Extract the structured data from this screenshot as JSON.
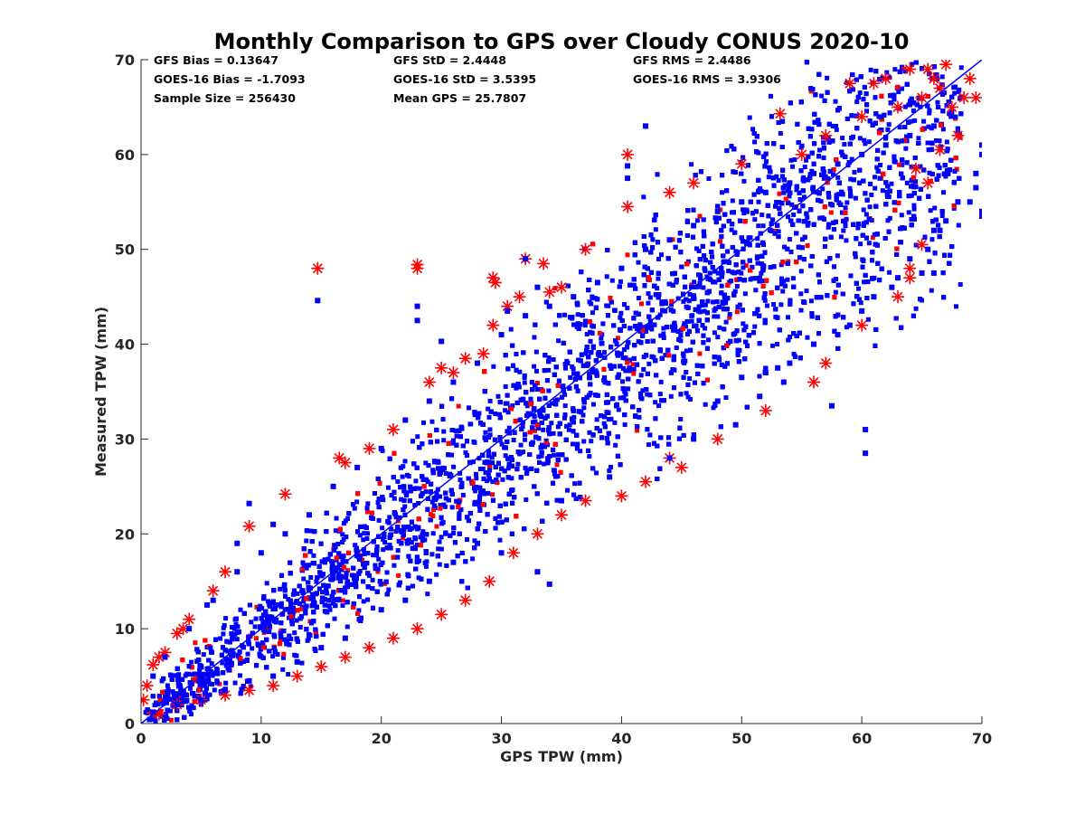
{
  "chart_data": {
    "type": "scatter",
    "title": "Monthly Comparison to GPS over Cloudy CONUS 2020-10",
    "xlabel": "GPS TPW (mm)",
    "ylabel": "Measured TPW (mm)",
    "xlim": [
      0,
      70
    ],
    "ylim": [
      0,
      70
    ],
    "xticks": [
      0,
      10,
      20,
      30,
      40,
      50,
      60,
      70
    ],
    "yticks": [
      0,
      10,
      20,
      30,
      40,
      50,
      60,
      70
    ],
    "grid": false,
    "colors": {
      "gfs": "#ff0000",
      "goes16": "#0000ff",
      "one_to_one": "#0000ff"
    },
    "stats": {
      "gfs_bias": "GFS Bias = 0.13647",
      "goes_bias": "GOES-16 Bias = -1.7093",
      "sample_size": "Sample Size = 256430",
      "gfs_std": "GFS StD = 2.4448",
      "goes_std": "GOES-16 StD = 3.5395",
      "mean_gps": "Mean GPS = 25.7807",
      "gfs_rms": "GFS RMS = 2.4486",
      "goes_rms": "GOES-16 RMS = 3.9306"
    },
    "series": [
      {
        "marker": "asterisk",
        "color": "#ff0000",
        "points": [
          [
            0.2,
            2.5
          ],
          [
            0.5,
            4
          ],
          [
            1,
            6.2
          ],
          [
            1.5,
            7
          ],
          [
            2,
            7.5
          ],
          [
            3,
            9.5
          ],
          [
            3.5,
            10
          ],
          [
            4,
            11
          ],
          [
            6,
            14
          ],
          [
            7,
            16
          ],
          [
            9,
            20.8
          ],
          [
            12,
            24.2
          ],
          [
            14.7,
            48
          ],
          [
            16.5,
            28
          ],
          [
            17,
            27.5
          ],
          [
            19,
            29
          ],
          [
            21,
            31
          ],
          [
            23,
            48
          ],
          [
            23,
            48.4
          ],
          [
            24,
            36
          ],
          [
            25,
            37.5
          ],
          [
            26,
            37
          ],
          [
            27,
            38.5
          ],
          [
            28.5,
            39
          ],
          [
            29.3,
            47
          ],
          [
            29.5,
            46.5
          ],
          [
            29.3,
            42
          ],
          [
            30.5,
            44
          ],
          [
            31.5,
            45
          ],
          [
            32,
            49
          ],
          [
            33.5,
            48.5
          ],
          [
            34,
            45.5
          ],
          [
            35,
            46
          ],
          [
            37,
            50
          ],
          [
            40.5,
            60
          ],
          [
            40.5,
            54.5
          ],
          [
            44,
            56
          ],
          [
            46,
            57
          ],
          [
            50,
            59
          ],
          [
            53.2,
            64.3
          ],
          [
            55,
            60
          ],
          [
            57,
            62
          ],
          [
            59,
            67.5
          ],
          [
            60,
            64
          ],
          [
            61,
            67.5
          ],
          [
            62,
            68
          ],
          [
            63,
            65
          ],
          [
            64,
            69
          ],
          [
            65,
            66
          ],
          [
            65.5,
            69
          ],
          [
            66,
            68
          ],
          [
            66.5,
            67
          ],
          [
            67,
            69.5
          ],
          [
            67.5,
            65
          ],
          [
            68,
            62
          ],
          [
            68.5,
            66
          ],
          [
            69,
            68
          ],
          [
            69.5,
            66
          ],
          [
            65.5,
            57
          ],
          [
            64.5,
            58.5
          ],
          [
            66.5,
            60.5
          ],
          [
            65,
            50.5
          ],
          [
            64,
            48
          ],
          [
            64,
            47
          ],
          [
            63,
            45
          ],
          [
            60,
            42
          ],
          [
            57,
            38
          ],
          [
            56,
            36
          ],
          [
            52,
            33
          ],
          [
            48,
            30
          ],
          [
            45,
            27
          ],
          [
            44,
            28
          ],
          [
            42,
            25.5
          ],
          [
            40,
            24
          ],
          [
            37,
            23.5
          ],
          [
            35,
            22
          ],
          [
            33,
            20
          ],
          [
            31,
            18
          ],
          [
            29,
            15
          ],
          [
            27,
            13
          ],
          [
            25,
            11.5
          ],
          [
            23,
            10
          ],
          [
            21,
            9
          ],
          [
            19,
            8
          ],
          [
            17,
            7
          ],
          [
            15,
            6
          ],
          [
            13,
            5
          ],
          [
            11,
            4
          ],
          [
            9,
            3.5
          ],
          [
            7,
            3
          ],
          [
            5,
            2.5
          ],
          [
            3,
            2
          ],
          [
            1.5,
            1
          ]
        ]
      },
      {
        "marker": "square",
        "color": "#0000ff",
        "points": [
          [
            14.7,
            44.6
          ],
          [
            23,
            44
          ],
          [
            23,
            42.5
          ],
          [
            25,
            40.3
          ],
          [
            42,
            63
          ],
          [
            40.5,
            58.8
          ],
          [
            40.5,
            57.5
          ],
          [
            33,
            46
          ],
          [
            32,
            49
          ],
          [
            30.5,
            43.5
          ],
          [
            9,
            23.2
          ],
          [
            11,
            21
          ],
          [
            8,
            19
          ],
          [
            5.5,
            12.5
          ],
          [
            60.3,
            28.5
          ],
          [
            60.3,
            31
          ],
          [
            57.5,
            33.5
          ],
          [
            53.5,
            36
          ],
          [
            51.5,
            34.5
          ],
          [
            49.5,
            31.5
          ],
          [
            46,
            30
          ],
          [
            44,
            28
          ],
          [
            39,
            26
          ],
          [
            35,
            23.5
          ],
          [
            34,
            14.7
          ],
          [
            33,
            16
          ],
          [
            30,
            18
          ],
          [
            28,
            19
          ],
          [
            26,
            17
          ],
          [
            24,
            15
          ],
          [
            22,
            13
          ],
          [
            20,
            12
          ],
          [
            17,
            9
          ],
          [
            15,
            8
          ],
          [
            13,
            6.5
          ],
          [
            11,
            5
          ],
          [
            9,
            4.5
          ],
          [
            7,
            3.5
          ],
          [
            5,
            2.5
          ],
          [
            3,
            2
          ],
          [
            1,
            1.2
          ],
          [
            70,
            61
          ],
          [
            70,
            60
          ],
          [
            69.5,
            58
          ],
          [
            69.5,
            56.5
          ],
          [
            70,
            54
          ],
          [
            70,
            53.5
          ],
          [
            69,
            55
          ],
          [
            68,
            55
          ],
          [
            67,
            53
          ],
          [
            66.5,
            52
          ],
          [
            66,
            52
          ],
          [
            65.5,
            50
          ],
          [
            64,
            49
          ],
          [
            65,
            47.5
          ],
          [
            66,
            47.5
          ],
          [
            63,
            47
          ],
          [
            62.5,
            46
          ],
          [
            61,
            45
          ],
          [
            60,
            43.5
          ],
          [
            59,
            42
          ],
          [
            58,
            41
          ],
          [
            56,
            40
          ],
          [
            54,
            38
          ],
          [
            53,
            37.5
          ],
          [
            52,
            37
          ],
          [
            50,
            36.5
          ],
          [
            48,
            34
          ],
          [
            66,
            63
          ],
          [
            64,
            62
          ],
          [
            62,
            61
          ],
          [
            60,
            60
          ],
          [
            58,
            59
          ],
          [
            56,
            58
          ],
          [
            54,
            57
          ],
          [
            52,
            56
          ],
          [
            50,
            55
          ],
          [
            48,
            54
          ],
          [
            46,
            52.5
          ],
          [
            44,
            51
          ],
          [
            42,
            50
          ],
          [
            40,
            48
          ],
          [
            38,
            46.5
          ],
          [
            36,
            45
          ],
          [
            34,
            44
          ],
          [
            32,
            43
          ],
          [
            30,
            41
          ],
          [
            28,
            38
          ],
          [
            26,
            36
          ],
          [
            24,
            34
          ],
          [
            22,
            32
          ],
          [
            20,
            29
          ],
          [
            18,
            27
          ],
          [
            16,
            25
          ],
          [
            14,
            22
          ],
          [
            12,
            20
          ],
          [
            10,
            18
          ],
          [
            8,
            16
          ],
          [
            6,
            13
          ],
          [
            4,
            10
          ],
          [
            2,
            7
          ],
          [
            1,
            5
          ]
        ]
      }
    ]
  }
}
